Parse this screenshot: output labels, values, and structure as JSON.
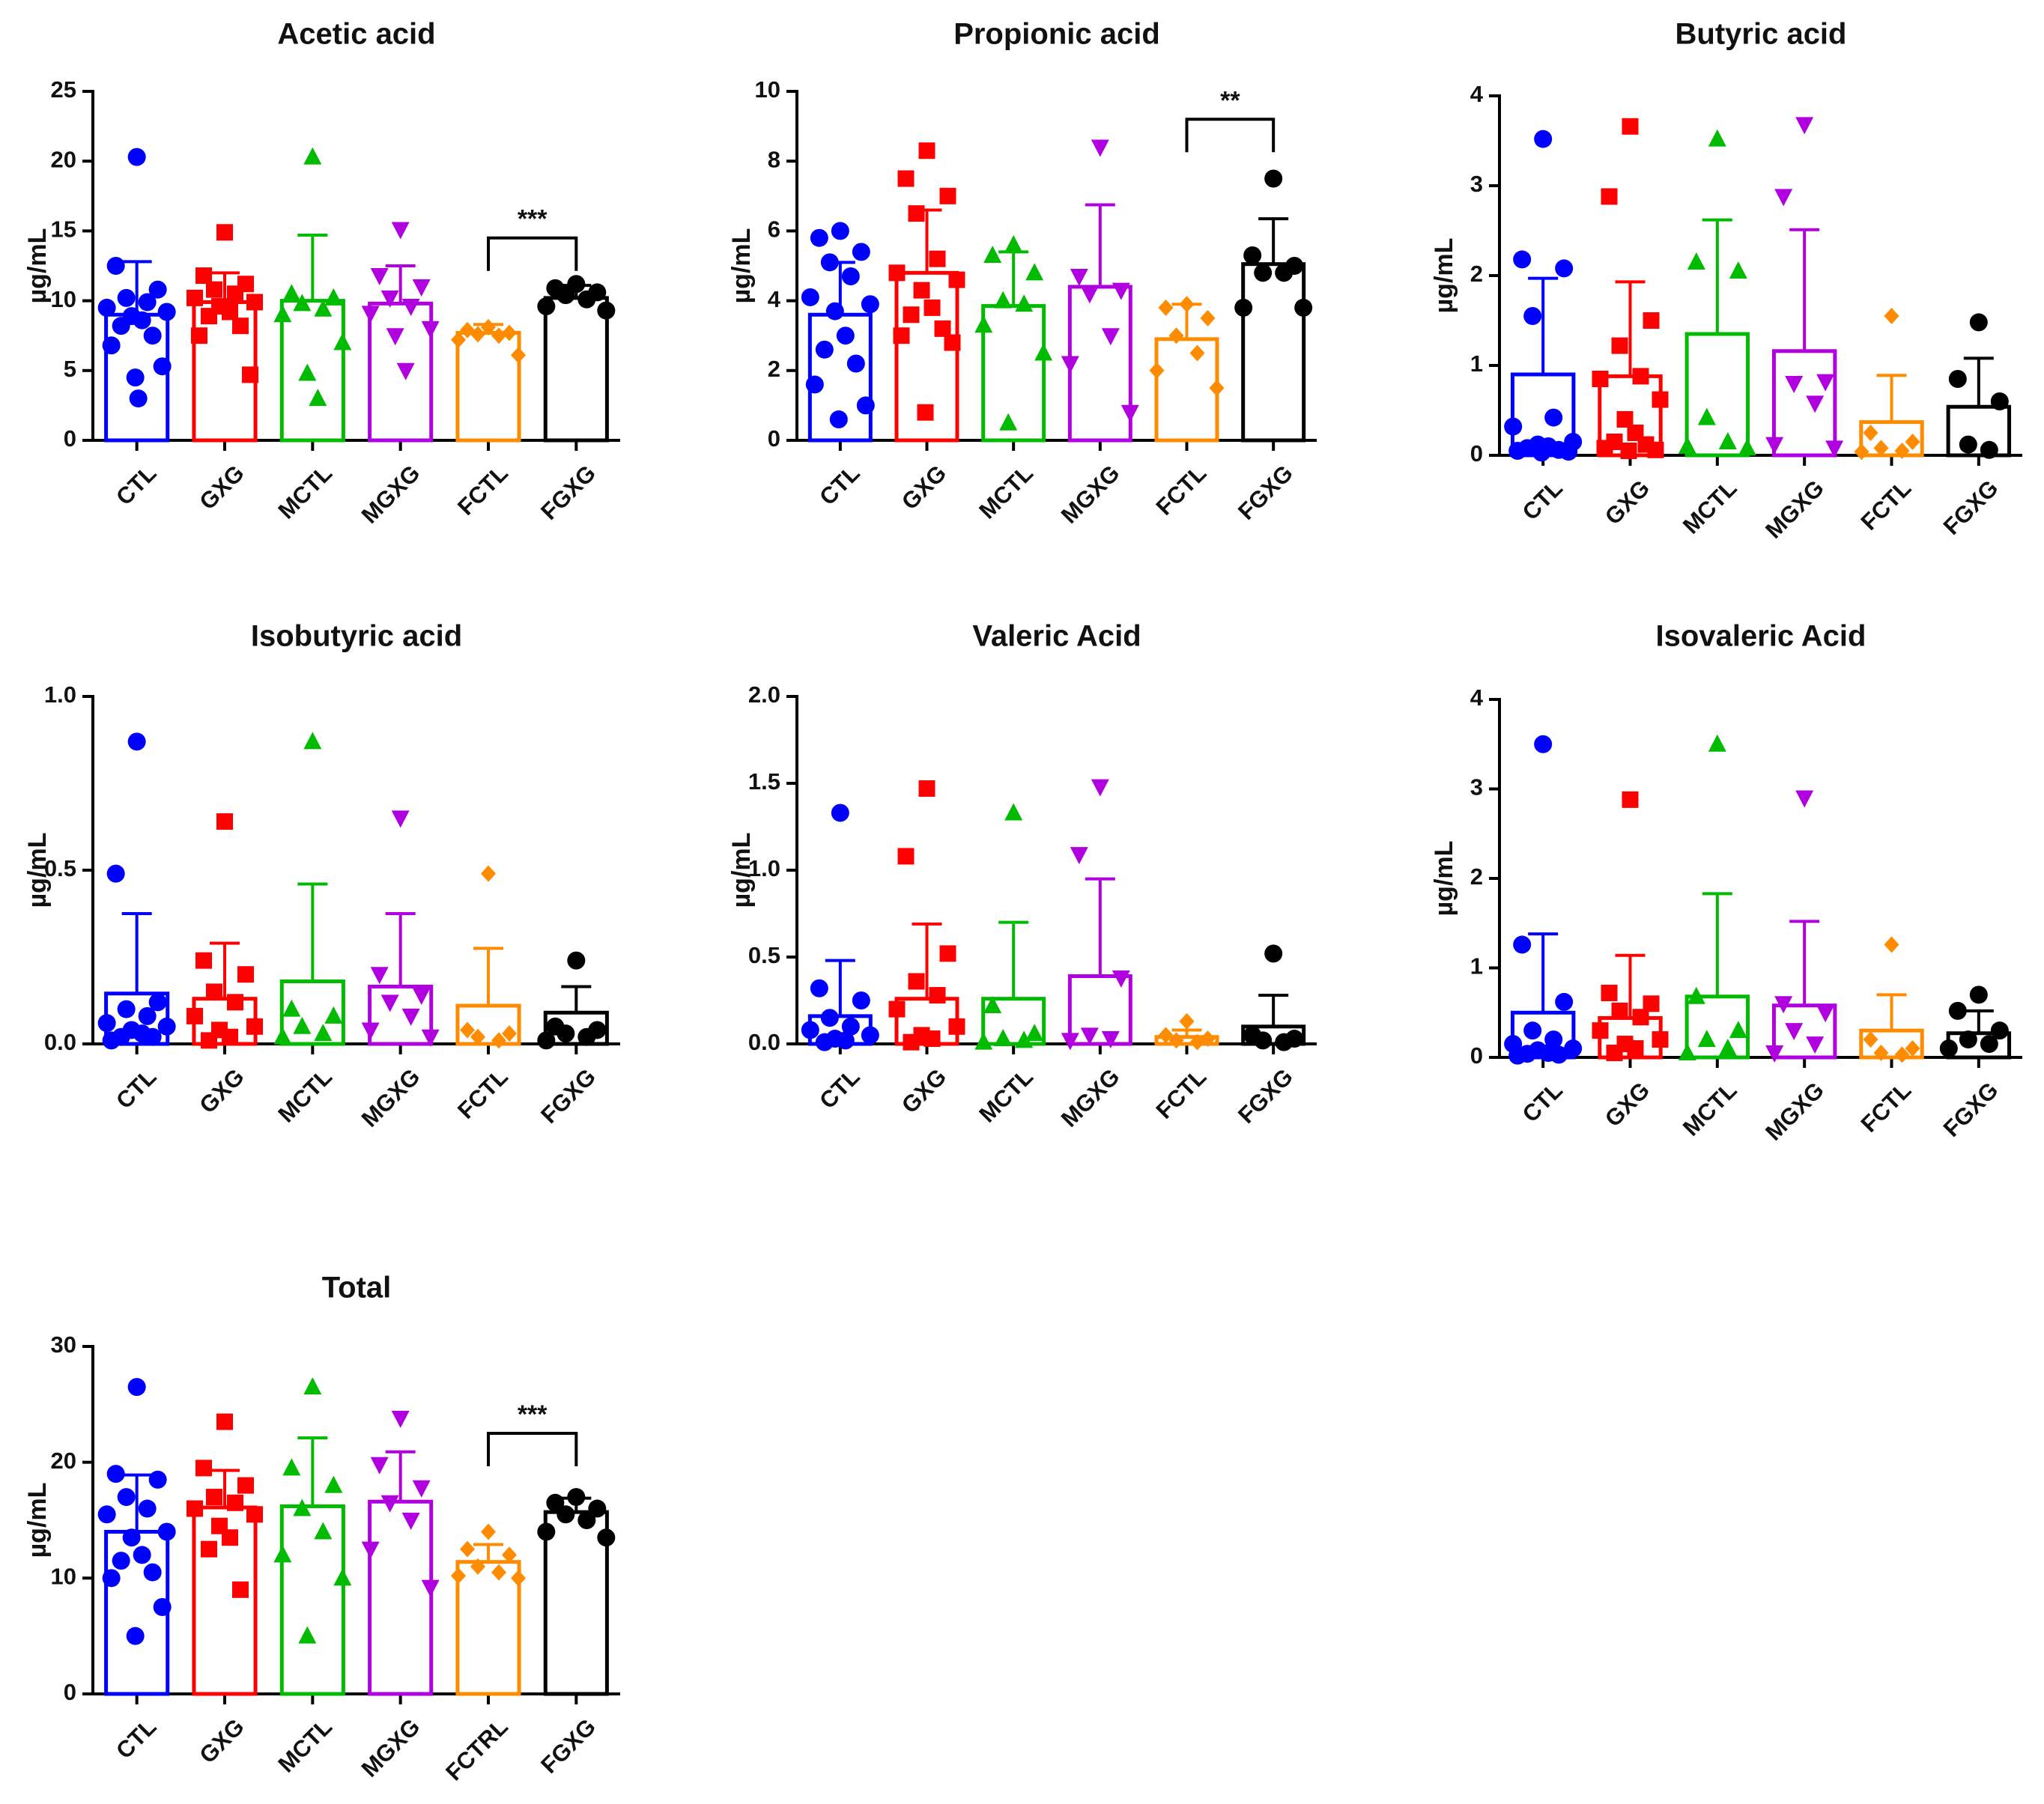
{
  "figure": {
    "ylabel": "µg/mL"
  },
  "chart_data": [
    {
      "type": "bar",
      "title": "Acetic acid",
      "ylabel": "µg/mL",
      "ylim": [
        0,
        25
      ],
      "yticks": [
        "0",
        "5",
        "10",
        "15",
        "20",
        "25"
      ],
      "categories": [
        "CTL",
        "GXG",
        "MCTL",
        "MGXG",
        "FCTL",
        "FGXG"
      ],
      "colors": [
        "#0000ff",
        "#ff0000",
        "#00bb00",
        "#b000e0",
        "#ff8c00",
        "#000000"
      ],
      "markers": [
        "circle",
        "square",
        "triangle",
        "triangle-down",
        "diamond",
        "circle"
      ],
      "values": [
        9.0,
        9.9,
        10.0,
        9.8,
        7.7,
        10.2
      ],
      "error": [
        3.8,
        2.1,
        4.7,
        2.7,
        0.6,
        0.9
      ],
      "points": [
        [
          20.3,
          12.5,
          10.8,
          10.2,
          9.9,
          9.5,
          9.2,
          8.9,
          8.6,
          8.2,
          7.5,
          6.8,
          5.3,
          4.5,
          3.0
        ],
        [
          14.9,
          11.8,
          11.2,
          10.8,
          10.5,
          10.2,
          9.9,
          9.6,
          9.2,
          8.9,
          8.2,
          7.5,
          4.7
        ],
        [
          20.3,
          10.5,
          10.2,
          9.8,
          9.4,
          9.0,
          7.0,
          4.8,
          3.0
        ],
        [
          15.1,
          11.8,
          11.0,
          10.2,
          9.6,
          9.1,
          8.0,
          7.5,
          5.0
        ],
        [
          8.1,
          7.9,
          7.7,
          7.6,
          7.5,
          7.2,
          6.1
        ],
        [
          11.2,
          10.9,
          10.6,
          10.4,
          10.1,
          9.6,
          9.3
        ]
      ],
      "significance": [
        {
          "from": 4,
          "to": 5,
          "label": "***",
          "y": 14.5
        }
      ]
    },
    {
      "type": "bar",
      "title": "Propionic acid",
      "ylabel": "µg/mL",
      "ylim": [
        0,
        10
      ],
      "yticks": [
        "0",
        "2",
        "4",
        "6",
        "8",
        "10"
      ],
      "categories": [
        "CTL",
        "GXG",
        "MCTL",
        "MGXG",
        "FCTL",
        "FGXG"
      ],
      "colors": [
        "#0000ff",
        "#ff0000",
        "#00bb00",
        "#b000e0",
        "#ff8c00",
        "#000000"
      ],
      "markers": [
        "circle",
        "square",
        "triangle",
        "triangle-down",
        "diamond",
        "circle"
      ],
      "values": [
        3.6,
        4.8,
        3.85,
        4.4,
        2.9,
        5.05
      ],
      "error": [
        1.5,
        1.8,
        1.55,
        2.35,
        1.0,
        1.3
      ],
      "points": [
        [
          6.0,
          5.8,
          5.4,
          5.1,
          4.7,
          4.1,
          3.9,
          3.7,
          3.0,
          2.6,
          2.2,
          1.6,
          1.0,
          0.6
        ],
        [
          8.3,
          7.5,
          7.0,
          6.5,
          5.2,
          4.8,
          4.6,
          4.3,
          3.8,
          3.6,
          3.2,
          3.0,
          2.8,
          0.8
        ],
        [
          5.6,
          5.3,
          4.8,
          4.0,
          3.9,
          3.3,
          2.5,
          0.5
        ],
        [
          8.4,
          4.7,
          4.3,
          4.2,
          3.0,
          2.2,
          0.8
        ],
        [
          3.9,
          3.8,
          3.5,
          3.0,
          2.5,
          2.0,
          1.5
        ],
        [
          7.5,
          5.3,
          5.0,
          4.8,
          4.8,
          3.8,
          3.8
        ]
      ],
      "significance": [
        {
          "from": 4,
          "to": 5,
          "label": "**",
          "y": 9.2
        }
      ]
    },
    {
      "type": "bar",
      "title": "Butyric acid",
      "ylabel": "µg/mL",
      "ylim": [
        0,
        4
      ],
      "yticks": [
        "0",
        "1",
        "2",
        "3",
        "4"
      ],
      "categories": [
        "CTL",
        "GXG",
        "MCTL",
        "MGXG",
        "FCTL",
        "FGXG"
      ],
      "colors": [
        "#0000ff",
        "#ff0000",
        "#00bb00",
        "#b000e0",
        "#ff8c00",
        "#000000"
      ],
      "markers": [
        "circle",
        "square",
        "triangle",
        "triangle-down",
        "diamond",
        "circle"
      ],
      "values": [
        0.9,
        0.88,
        1.35,
        1.16,
        0.37,
        0.54
      ],
      "error": [
        1.07,
        1.05,
        1.27,
        1.35,
        0.52,
        0.54
      ],
      "points": [
        [
          3.52,
          2.18,
          2.08,
          1.55,
          0.42,
          0.32,
          0.15,
          0.12,
          0.1,
          0.08,
          0.06,
          0.05,
          0.04,
          0.03
        ],
        [
          3.66,
          2.88,
          1.5,
          1.22,
          0.88,
          0.85,
          0.62,
          0.4,
          0.25,
          0.15,
          0.12,
          0.08,
          0.06,
          0.05
        ],
        [
          3.52,
          2.15,
          2.05,
          0.42,
          0.15,
          0.1,
          0.08
        ],
        [
          3.68,
          2.88,
          0.82,
          0.8,
          0.58,
          0.12,
          0.08
        ],
        [
          1.55,
          0.25,
          0.15,
          0.08,
          0.05,
          0.04
        ],
        [
          1.48,
          0.85,
          0.6,
          0.12,
          0.06
        ]
      ],
      "significance": []
    },
    {
      "type": "bar",
      "title": "Isobutyric acid",
      "ylabel": "µg/mL",
      "ylim": [
        0,
        1.0
      ],
      "yticks": [
        "0.0",
        "0.5",
        "1.0"
      ],
      "categories": [
        "CTL",
        "GXG",
        "MCTL",
        "MGXG",
        "FCTL",
        "FGXG"
      ],
      "colors": [
        "#0000ff",
        "#ff0000",
        "#00bb00",
        "#b000e0",
        "#ff8c00",
        "#000000"
      ],
      "markers": [
        "circle",
        "square",
        "triangle",
        "triangle-down",
        "diamond",
        "circle"
      ],
      "values": [
        0.145,
        0.13,
        0.18,
        0.165,
        0.11,
        0.09
      ],
      "error": [
        0.23,
        0.16,
        0.28,
        0.21,
        0.165,
        0.075
      ],
      "points": [
        [
          0.87,
          0.49,
          0.12,
          0.1,
          0.08,
          0.06,
          0.05,
          0.04,
          0.03,
          0.02,
          0.02,
          0.01
        ],
        [
          0.64,
          0.24,
          0.2,
          0.15,
          0.12,
          0.08,
          0.05,
          0.04,
          0.02,
          0.01
        ],
        [
          0.87,
          0.1,
          0.08,
          0.05,
          0.03,
          0.02
        ],
        [
          0.65,
          0.2,
          0.14,
          0.12,
          0.08,
          0.04,
          0.02
        ],
        [
          0.49,
          0.04,
          0.03,
          0.02,
          0.01
        ],
        [
          0.24,
          0.05,
          0.04,
          0.03,
          0.02,
          0.01
        ]
      ],
      "significance": []
    },
    {
      "type": "bar",
      "title": "Valeric Acid",
      "ylabel": "µg/mL",
      "ylim": [
        0,
        2.0
      ],
      "yticks": [
        "0.0",
        "0.5",
        "1.0",
        "1.5",
        "2.0"
      ],
      "categories": [
        "CTL",
        "GXG",
        "MCTL",
        "MGXG",
        "FCTL",
        "FGXG"
      ],
      "colors": [
        "#0000ff",
        "#ff0000",
        "#00bb00",
        "#b000e0",
        "#ff8c00",
        "#000000"
      ],
      "markers": [
        "circle",
        "square",
        "triangle",
        "triangle-down",
        "diamond",
        "circle"
      ],
      "values": [
        0.16,
        0.26,
        0.26,
        0.39,
        0.04,
        0.1
      ],
      "error": [
        0.32,
        0.43,
        0.44,
        0.56,
        0.04,
        0.18
      ],
      "points": [
        [
          1.33,
          0.32,
          0.25,
          0.15,
          0.1,
          0.08,
          0.05,
          0.03,
          0.02,
          0.01
        ],
        [
          1.47,
          1.08,
          0.52,
          0.36,
          0.28,
          0.2,
          0.1,
          0.05,
          0.03,
          0.01
        ],
        [
          1.33,
          0.22,
          0.06,
          0.03,
          0.02,
          0.01
        ],
        [
          1.48,
          1.09,
          0.38,
          0.05,
          0.03,
          0.02
        ],
        [
          0.13,
          0.05,
          0.03,
          0.02,
          0.01
        ],
        [
          0.52,
          0.05,
          0.03,
          0.02,
          0.01
        ]
      ],
      "significance": []
    },
    {
      "type": "bar",
      "title": "Isovaleric Acid",
      "ylabel": "µg/mL",
      "ylim": [
        0,
        4
      ],
      "yticks": [
        "0",
        "1",
        "2",
        "3",
        "4"
      ],
      "categories": [
        "CTL",
        "GXG",
        "MCTL",
        "MGXG",
        "FCTL",
        "FGXG"
      ],
      "colors": [
        "#0000ff",
        "#ff0000",
        "#00bb00",
        "#b000e0",
        "#ff8c00",
        "#000000"
      ],
      "markers": [
        "circle",
        "square",
        "triangle",
        "triangle-down",
        "diamond",
        "circle"
      ],
      "values": [
        0.5,
        0.44,
        0.68,
        0.58,
        0.3,
        0.27
      ],
      "error": [
        0.88,
        0.7,
        1.15,
        0.94,
        0.4,
        0.25
      ],
      "points": [
        [
          3.5,
          1.26,
          0.62,
          0.3,
          0.2,
          0.15,
          0.1,
          0.08,
          0.05,
          0.04,
          0.03,
          0.02
        ],
        [
          2.88,
          0.72,
          0.6,
          0.52,
          0.45,
          0.3,
          0.2,
          0.15,
          0.1,
          0.05
        ],
        [
          3.5,
          0.68,
          0.3,
          0.2,
          0.1,
          0.05
        ],
        [
          2.9,
          0.6,
          0.5,
          0.3,
          0.15,
          0.05
        ],
        [
          1.26,
          0.2,
          0.1,
          0.05,
          0.03
        ],
        [
          0.7,
          0.52,
          0.3,
          0.2,
          0.15,
          0.1
        ]
      ],
      "significance": []
    },
    {
      "type": "bar",
      "title": "Total",
      "ylabel": "µg/mL",
      "ylim": [
        0,
        30
      ],
      "yticks": [
        "0",
        "10",
        "20",
        "30"
      ],
      "categories": [
        "CTL",
        "GXG",
        "MCTL",
        "MGXG",
        "FCTRL",
        "FGXG"
      ],
      "colors": [
        "#0000ff",
        "#ff0000",
        "#00bb00",
        "#b000e0",
        "#ff8c00",
        "#000000"
      ],
      "markers": [
        "circle",
        "square",
        "triangle",
        "triangle-down",
        "diamond",
        "circle"
      ],
      "values": [
        14.0,
        16.1,
        16.2,
        16.6,
        11.4,
        15.7
      ],
      "error": [
        4.9,
        3.2,
        5.9,
        4.3,
        1.5,
        1.2
      ],
      "points": [
        [
          26.5,
          19.0,
          18.5,
          17.0,
          16.0,
          15.5,
          14.0,
          13.5,
          12.0,
          11.5,
          10.5,
          10.0,
          7.5,
          5.0
        ],
        [
          23.5,
          19.5,
          18.0,
          17.0,
          16.5,
          16.0,
          15.5,
          14.5,
          13.5,
          12.5,
          9.0
        ],
        [
          26.5,
          19.5,
          18.0,
          16.0,
          14.0,
          12.0,
          10.0,
          5.0
        ],
        [
          23.8,
          19.8,
          17.8,
          16.5,
          15.0,
          12.5,
          9.2
        ],
        [
          14.0,
          12.5,
          12.0,
          11.0,
          10.5,
          10.2,
          10.0
        ],
        [
          17.0,
          16.5,
          16.0,
          15.5,
          15.0,
          14.0,
          13.5
        ]
      ],
      "significance": [
        {
          "from": 4,
          "to": 5,
          "label": "***",
          "y": 22.5
        }
      ]
    }
  ]
}
